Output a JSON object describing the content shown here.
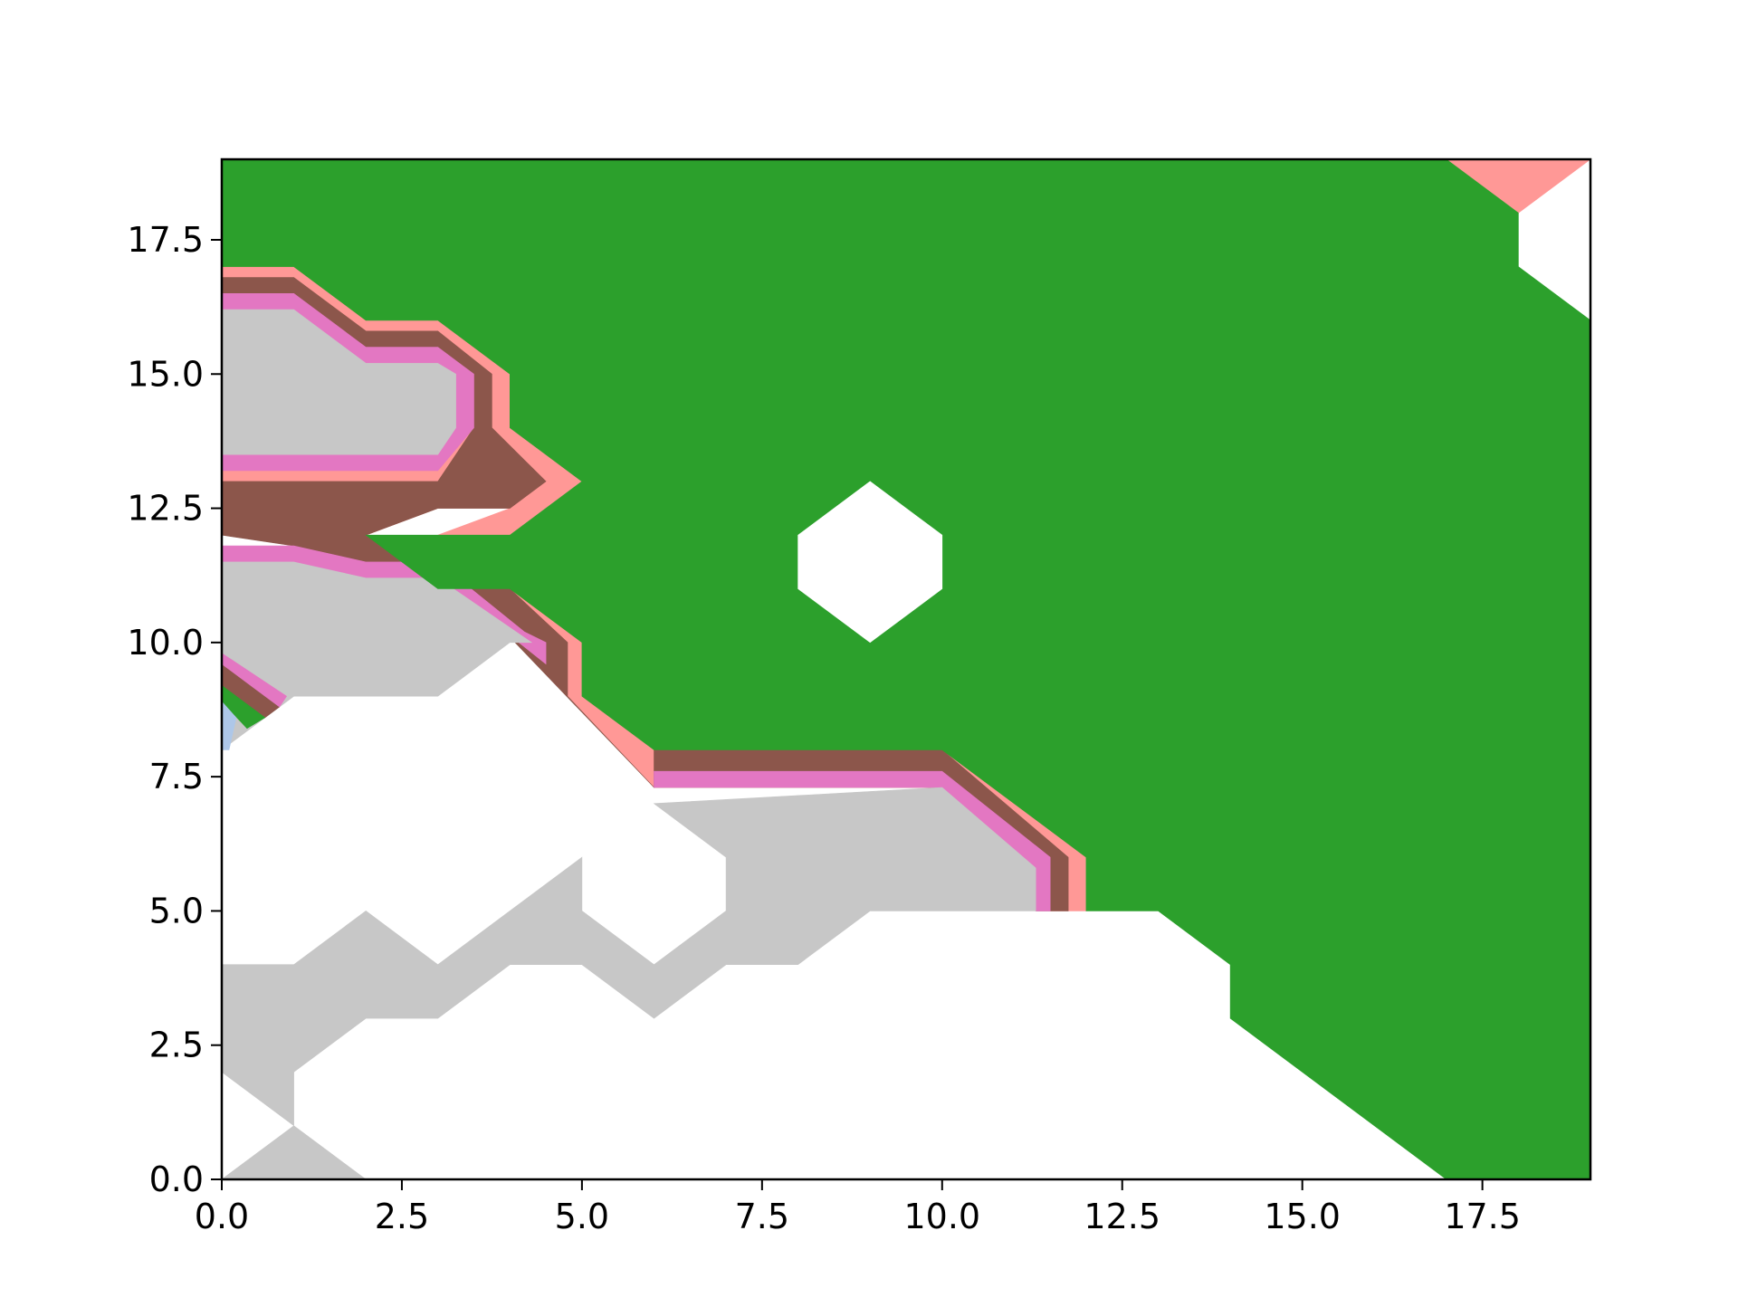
{
  "chart_data": {
    "type": "contourf",
    "title": "",
    "xlabel": "",
    "ylabel": "",
    "xlim": [
      0,
      19
    ],
    "ylim": [
      0,
      19
    ],
    "x_ticks": [
      0.0,
      2.5,
      5.0,
      7.5,
      10.0,
      12.5,
      15.0,
      17.5
    ],
    "y_ticks": [
      0.0,
      2.5,
      5.0,
      7.5,
      10.0,
      12.5,
      15.0,
      17.5
    ],
    "x_tick_labels": [
      "0.0",
      "2.5",
      "5.0",
      "7.5",
      "10.0",
      "12.5",
      "15.0",
      "17.5"
    ],
    "y_tick_labels": [
      "0.0",
      "2.5",
      "5.0",
      "7.5",
      "10.0",
      "12.5",
      "15.0",
      "17.5"
    ],
    "grid": false,
    "legend": "none",
    "colormap": "tab20",
    "levels": [
      {
        "name": "gray-level",
        "color": "#c7c7c7"
      },
      {
        "name": "pink-level",
        "color": "#e377c2"
      },
      {
        "name": "brown-level",
        "color": "#8c564b"
      },
      {
        "name": "salmon-level",
        "color": "#ff9896"
      },
      {
        "name": "green-level",
        "color": "#2ca02c"
      },
      {
        "name": "light-blue-level",
        "color": "#aec7e8"
      },
      {
        "name": "unfilled",
        "color": "#ffffff"
      }
    ],
    "regions": [
      {
        "level": "salmon-level",
        "points": [
          [
            17,
            19
          ],
          [
            19,
            19
          ],
          [
            18,
            18
          ]
        ]
      },
      {
        "level": "salmon-level",
        "points": [
          [
            0,
            17
          ],
          [
            1,
            17
          ],
          [
            2,
            16
          ],
          [
            3,
            16
          ],
          [
            4,
            15
          ],
          [
            4,
            14
          ],
          [
            5,
            13
          ],
          [
            4,
            12
          ],
          [
            3,
            12
          ],
          [
            4,
            12.5
          ],
          [
            3,
            12.5
          ],
          [
            2,
            12
          ],
          [
            3,
            11
          ],
          [
            4,
            11
          ],
          [
            5,
            10
          ],
          [
            5,
            9
          ],
          [
            6,
            8
          ],
          [
            10,
            8
          ],
          [
            12,
            6
          ],
          [
            12,
            5
          ],
          [
            11.5,
            5
          ],
          [
            11.5,
            5.8
          ],
          [
            10,
            7.3
          ],
          [
            6,
            7.3
          ],
          [
            4.8,
            9
          ],
          [
            4.8,
            10
          ],
          [
            3,
            11.8
          ],
          [
            2,
            11.8
          ],
          [
            1,
            12
          ],
          [
            0,
            12
          ]
        ]
      },
      {
        "level": "brown-level",
        "points": [
          [
            0,
            16.8
          ],
          [
            1,
            16.8
          ],
          [
            2,
            15.8
          ],
          [
            3,
            15.8
          ],
          [
            3.75,
            15
          ],
          [
            3.75,
            14
          ],
          [
            4.5,
            13
          ],
          [
            4,
            12.5
          ],
          [
            3,
            12.5
          ],
          [
            2,
            12
          ],
          [
            3,
            11.8
          ],
          [
            4,
            11
          ],
          [
            4.8,
            10
          ],
          [
            4.8,
            9
          ],
          [
            6,
            7.3
          ],
          [
            6,
            8
          ],
          [
            10,
            8
          ],
          [
            11.75,
            6
          ],
          [
            11.75,
            5
          ],
          [
            11.3,
            5
          ],
          [
            11.3,
            5.8
          ],
          [
            10,
            7.3
          ],
          [
            6,
            7.3
          ],
          [
            3,
            11.5
          ],
          [
            2,
            11.5
          ],
          [
            1,
            11.8
          ],
          [
            0,
            12
          ],
          [
            0,
            13
          ],
          [
            3,
            13
          ],
          [
            3.5,
            14
          ],
          [
            3.5,
            15
          ],
          [
            3,
            15.5
          ],
          [
            2,
            15.5
          ],
          [
            1,
            16.5
          ],
          [
            0,
            16.5
          ]
        ]
      },
      {
        "level": "pink-level",
        "points": [
          [
            0,
            16.5
          ],
          [
            1,
            16.5
          ],
          [
            2,
            15.5
          ],
          [
            3,
            15.5
          ],
          [
            3.5,
            15
          ],
          [
            3.5,
            14
          ],
          [
            3,
            13.2
          ],
          [
            0,
            13.2
          ],
          [
            0,
            13.5
          ],
          [
            3,
            13.5
          ],
          [
            3.25,
            14
          ],
          [
            3.25,
            15
          ],
          [
            3,
            15.2
          ],
          [
            2,
            15.2
          ],
          [
            1,
            16.2
          ],
          [
            0,
            16.2
          ]
        ]
      },
      {
        "level": "pink-level",
        "points": [
          [
            0,
            11.8
          ],
          [
            1,
            11.8
          ],
          [
            2,
            11.5
          ],
          [
            3,
            11.5
          ],
          [
            4.2,
            10.2
          ],
          [
            4.5,
            10
          ],
          [
            4.5,
            9.6
          ],
          [
            3,
            11.2
          ],
          [
            2,
            11.2
          ],
          [
            1,
            11.5
          ],
          [
            0,
            11.5
          ]
        ]
      },
      {
        "level": "pink-level",
        "points": [
          [
            6,
            7.6
          ],
          [
            10,
            7.6
          ],
          [
            11.5,
            6
          ],
          [
            11.5,
            5
          ],
          [
            11.3,
            5
          ],
          [
            11.3,
            5.8
          ],
          [
            10,
            7.3
          ],
          [
            6,
            7.3
          ]
        ]
      },
      {
        "level": "gray-level",
        "points": [
          [
            0,
            16.2
          ],
          [
            1,
            16.2
          ],
          [
            2,
            15.2
          ],
          [
            3,
            15.2
          ],
          [
            3.25,
            15
          ],
          [
            3.25,
            14
          ],
          [
            3,
            13.5
          ],
          [
            0,
            13.5
          ]
        ]
      },
      {
        "level": "gray-level",
        "points": [
          [
            0,
            11.5
          ],
          [
            1,
            11.5
          ],
          [
            2,
            11.2
          ],
          [
            3,
            11.2
          ],
          [
            4.3,
            10
          ],
          [
            4,
            10
          ],
          [
            3,
            9
          ],
          [
            1,
            9
          ],
          [
            0,
            8
          ],
          [
            0,
            4
          ],
          [
            1,
            4
          ],
          [
            2,
            5
          ],
          [
            3,
            4
          ],
          [
            5,
            6
          ],
          [
            5,
            5
          ],
          [
            6,
            4
          ],
          [
            7,
            5
          ],
          [
            7,
            6
          ],
          [
            6,
            7
          ],
          [
            10,
            7.3
          ],
          [
            11.3,
            5.8
          ],
          [
            11.3,
            5
          ],
          [
            9,
            5
          ],
          [
            8,
            4
          ],
          [
            7,
            4
          ],
          [
            6,
            3
          ],
          [
            5,
            4
          ],
          [
            4,
            4
          ],
          [
            3,
            3
          ],
          [
            2,
            3
          ],
          [
            1,
            2
          ],
          [
            1,
            1
          ],
          [
            0,
            2
          ]
        ]
      },
      {
        "level": "gray-level",
        "points": [
          [
            0,
            0
          ],
          [
            2,
            0
          ],
          [
            1,
            1
          ]
        ]
      },
      {
        "level": "green-level",
        "points": [
          [
            0,
            19
          ],
          [
            17,
            19
          ],
          [
            18,
            18
          ],
          [
            18,
            17
          ],
          [
            19,
            16
          ],
          [
            19,
            0
          ],
          [
            17,
            0
          ],
          [
            14,
            3
          ],
          [
            14,
            4
          ],
          [
            13,
            5
          ],
          [
            12,
            5
          ],
          [
            12,
            6
          ],
          [
            10,
            8
          ],
          [
            6,
            8
          ],
          [
            5,
            9
          ],
          [
            5,
            10
          ],
          [
            4,
            11
          ],
          [
            3,
            11
          ],
          [
            2,
            12
          ],
          [
            3,
            12
          ],
          [
            4,
            12
          ],
          [
            5,
            13
          ],
          [
            4,
            14
          ],
          [
            4,
            15
          ],
          [
            3,
            16
          ],
          [
            2,
            16
          ],
          [
            1,
            17
          ],
          [
            0,
            17
          ]
        ]
      },
      {
        "level": "unfilled",
        "points": [
          [
            8,
            12
          ],
          [
            9,
            13
          ],
          [
            10,
            12
          ],
          [
            10,
            11
          ],
          [
            9,
            10
          ],
          [
            8,
            11
          ]
        ]
      },
      {
        "level": "brown-level",
        "points": [
          [
            0,
            9.6
          ],
          [
            0.8,
            8.8
          ],
          [
            0.6,
            8.6
          ],
          [
            0,
            9.2
          ]
        ]
      },
      {
        "level": "pink-level",
        "points": [
          [
            0,
            9.8
          ],
          [
            0.9,
            9
          ],
          [
            0.8,
            8.8
          ],
          [
            0,
            9.6
          ]
        ]
      },
      {
        "level": "green-level",
        "points": [
          [
            0,
            9.2
          ],
          [
            0.6,
            8.6
          ],
          [
            0.35,
            8.4
          ],
          [
            0,
            8.9
          ]
        ]
      },
      {
        "level": "light-blue-level",
        "points": [
          [
            0,
            8.9
          ],
          [
            0.2,
            8.6
          ],
          [
            0.1,
            8
          ],
          [
            0,
            8
          ]
        ]
      }
    ]
  }
}
